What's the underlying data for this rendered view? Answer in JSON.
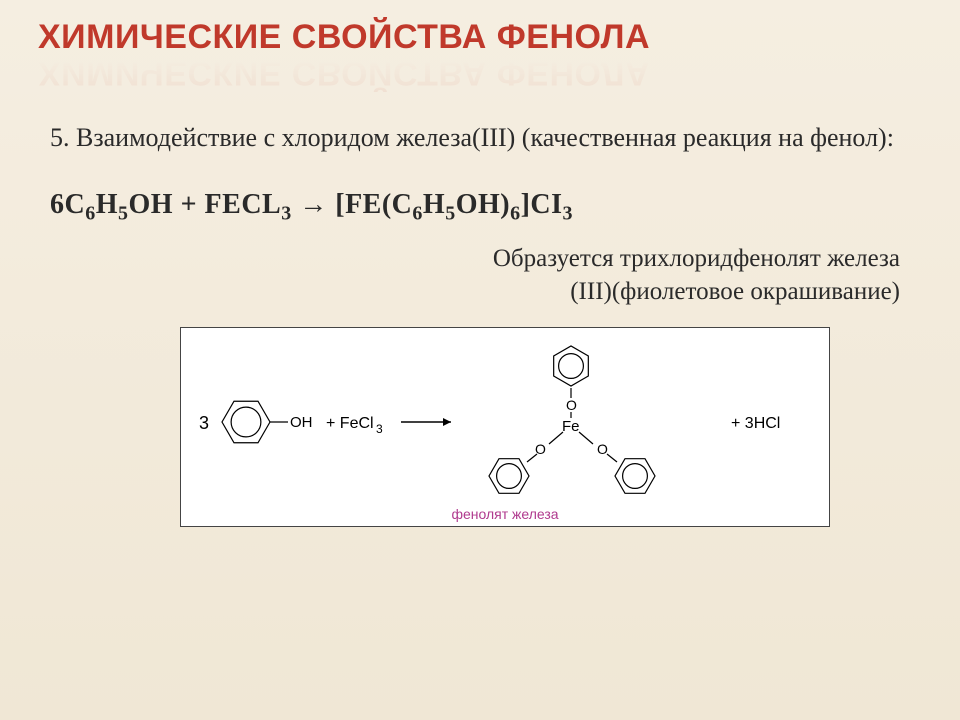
{
  "title": "ХИМИЧЕСКИЕ СВОЙСТВА ФЕНОЛА",
  "subtitle": "5. Взаимодействие с хлоридом железа(III) (качественная реакция на фенол):",
  "equation": {
    "lhs_coef": "6",
    "phenol": {
      "c": "C",
      "c_n": "6",
      "h": "H",
      "h_n": "5",
      "oh": "OH"
    },
    "plus": " + ",
    "fecl": {
      "fe": "FE",
      "cl": "CL",
      "n": "3"
    },
    "arrow": " → ",
    "complex": {
      "open": "[",
      "fe": "FE(",
      "c": "C",
      "c_n": "6",
      "h": "H",
      "h_n": "5",
      "oh": "OH)",
      "oh_n": "6",
      "close": "]",
      "cl": "CI",
      "cl_n": "3"
    }
  },
  "result_line1": "Образуется трихлоридфенолят железа",
  "result_line2": "(III)(фиолетовое окрашивание)",
  "diagram": {
    "left_coef": "3",
    "oh_label": "OH",
    "plus": "+ FeCl",
    "fecl_n": "3",
    "arrow": "→",
    "fe_label": "Fe",
    "o_label": "O",
    "rhs_plus": "+ 3HCl",
    "caption": "фенолят железа",
    "ring_color": "#000000",
    "stroke_width": 1.2,
    "bg": "#ffffff"
  }
}
